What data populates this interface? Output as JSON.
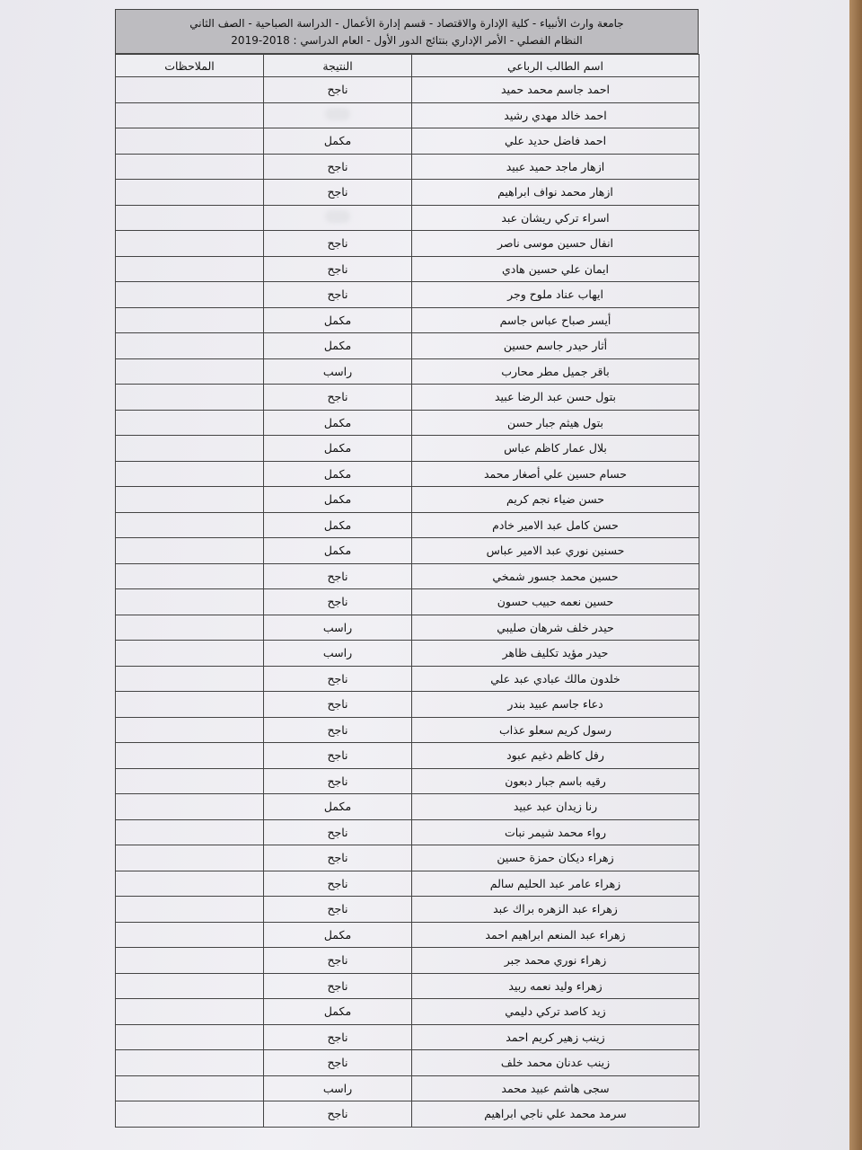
{
  "header": {
    "lines": [
      "جامعة وارث الأنبياء - كلية الإدارة والاقتصاد - قسم إدارة الأعمال - الدراسة الصباحية - الصف الثاني",
      "النظام الفصلي - الأمر الإداري بنتائج الدور الأول - العام الدراسي : 2018-2019"
    ]
  },
  "table": {
    "columns": [
      "اسم الطالب الرباعي",
      "النتيجة",
      "الملاحظات"
    ],
    "rows": [
      [
        "احمد جاسم محمد حميد",
        "ناجح"
      ],
      [
        "احمد خالد مهدي رشيد"
      ],
      [
        "احمد فاضل حديد علي",
        "مكمل"
      ],
      [
        "ازهار ماجد حميد عبيد",
        "ناجح"
      ],
      [
        "ازهار محمد نواف ابراهيم",
        "ناجح"
      ],
      [
        "اسراء تركي ريشان عبد"
      ],
      [
        "انفال حسين موسى ناصر",
        "ناجح"
      ],
      [
        "ايمان علي حسين هادي",
        "ناجح"
      ],
      [
        "ايهاب عناد ملوح وجر",
        "ناجح"
      ],
      [
        "أيسر صباح عباس جاسم",
        "مكمل"
      ],
      [
        "أثار حيدر جاسم حسين",
        "مكمل"
      ],
      [
        "باقر جميل مطر محارب",
        "راسب"
      ],
      [
        "بتول حسن عبد الرضا عبيد",
        "ناجح"
      ],
      [
        "بتول هيثم جبار حسن",
        "مكمل"
      ],
      [
        "بلال عمار كاظم عباس",
        "مكمل"
      ],
      [
        "حسام حسين علي أصغار محمد",
        "مكمل"
      ],
      [
        "حسن ضياء نجم كريم",
        "مكمل"
      ],
      [
        "حسن كامل عبد الامير خادم",
        "مكمل"
      ],
      [
        "حسنين نوري عبد الامير عباس",
        "مكمل"
      ],
      [
        "حسين محمد جسور شمخي",
        "ناجح"
      ],
      [
        "حسين نعمه حبيب حسون",
        "ناجح"
      ],
      [
        "حيدر خلف شرهان صليبي",
        "راسب"
      ],
      [
        "حيدر مؤيد تكليف ظاهر",
        "راسب"
      ],
      [
        "خلدون مالك عبادي عبد علي",
        "ناجح"
      ],
      [
        "دعاء جاسم عبيد بندر",
        "ناجح"
      ],
      [
        "رسول كريم سعلو عذاب",
        "ناجح"
      ],
      [
        "رفل كاظم دغيم عبود",
        "ناجح"
      ],
      [
        "رقيه باسم جبار دبعون",
        "ناجح"
      ],
      [
        "رنا زيدان عبد عبيد",
        "مكمل"
      ],
      [
        "رواء محمد شيمر نبات",
        "ناجح"
      ],
      [
        "زهراء ديكان حمزة حسين",
        "ناجح"
      ],
      [
        "زهراء عامر عبد الحليم سالم",
        "ناجح"
      ],
      [
        "زهراء عبد الزهره براك عبد",
        "ناجح"
      ],
      [
        "زهراء عبد المنعم ابراهيم احمد",
        "مكمل"
      ],
      [
        "زهراء نوري محمد جبر",
        "ناجح"
      ],
      [
        "زهراء وليد نعمه ربيد",
        "ناجح"
      ],
      [
        "زيد كاصد تركي دليمي",
        "مكمل"
      ],
      [
        "زينب زهير كريم احمد",
        "ناجح"
      ],
      [
        "زينب عدنان محمد خلف",
        "ناجح"
      ],
      [
        "سجى هاشم عبيد محمد",
        "راسب"
      ],
      [
        "سرمد محمد علي ناجي ابراهيم",
        "ناجح"
      ]
    ]
  }
}
